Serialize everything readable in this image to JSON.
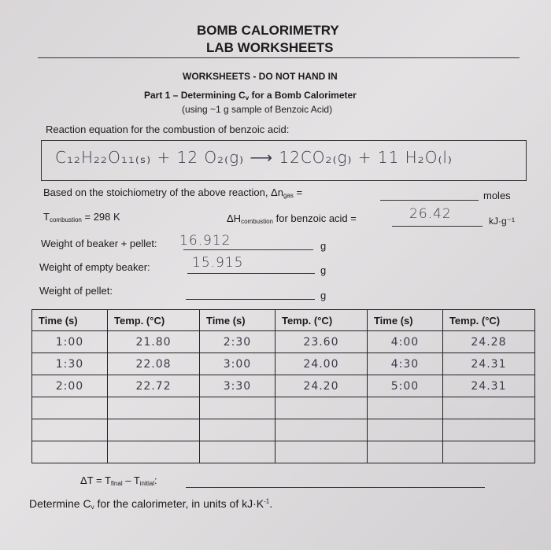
{
  "header": {
    "title_lines": [
      "BOMB CALORIMETRY",
      "LAB WORKSHEETS"
    ],
    "notice": "WORKSHEETS - DO NOT HAND IN",
    "part_heading": [
      "Part 1 – Determining C",
      "v",
      " for a Bomb Calorimeter"
    ],
    "subtitle": "(using ~1 g sample of Benzoic Acid)"
  },
  "reaction": {
    "prompt": "Reaction equation for the combustion of benzoic acid:",
    "handwritten_equation": "C₁₂H₂₂O₁₁₍ₛ₎ + 12 O₂₍g₎ ⟶ 12CO₂₍g₎ + 11 H₂O₍l₎"
  },
  "fields": {
    "delta_n": {
      "label": [
        "Based on the stoichiometry of the above reaction, Δn",
        "gas",
        " ="
      ],
      "unit": "moles"
    },
    "t_combustion": [
      "T",
      "combustion",
      " = 298 K"
    ],
    "delta_h": {
      "label": [
        "ΔH",
        "combustion",
        " for benzoic acid ="
      ],
      "answer": "26.42",
      "unit": "kJ·g⁻¹"
    },
    "beaker_pellet": {
      "label": "Weight of beaker + pellet:",
      "answer": "16.912",
      "unit": "g"
    },
    "empty_beaker": {
      "label": "Weight of empty beaker:",
      "answer": "15.915",
      "unit": "g"
    },
    "pellet": {
      "label": "Weight of pellet:",
      "unit": "g"
    }
  },
  "table": {
    "headers": [
      "Time (s)",
      "Temp. (°C)",
      "Time (s)",
      "Temp. (°C)",
      "Time (s)",
      "Temp. (°C)"
    ],
    "rows": [
      [
        "1:00",
        "21.80",
        "2:30",
        "23.60",
        "4:00",
        "24.28"
      ],
      [
        "1:30",
        "22.08",
        "3:00",
        "24.00",
        "4:30",
        "24.31"
      ],
      [
        "2:00",
        "22.72",
        "3:30",
        "24.20",
        "5:00",
        "24.31"
      ]
    ]
  },
  "footer": {
    "delta_t": [
      "ΔT = T",
      "final",
      " – T",
      "initial",
      ":"
    ],
    "determine": [
      "Determine C",
      "v",
      " for the calorimeter, in units of kJ·K",
      "-1",
      "."
    ]
  }
}
